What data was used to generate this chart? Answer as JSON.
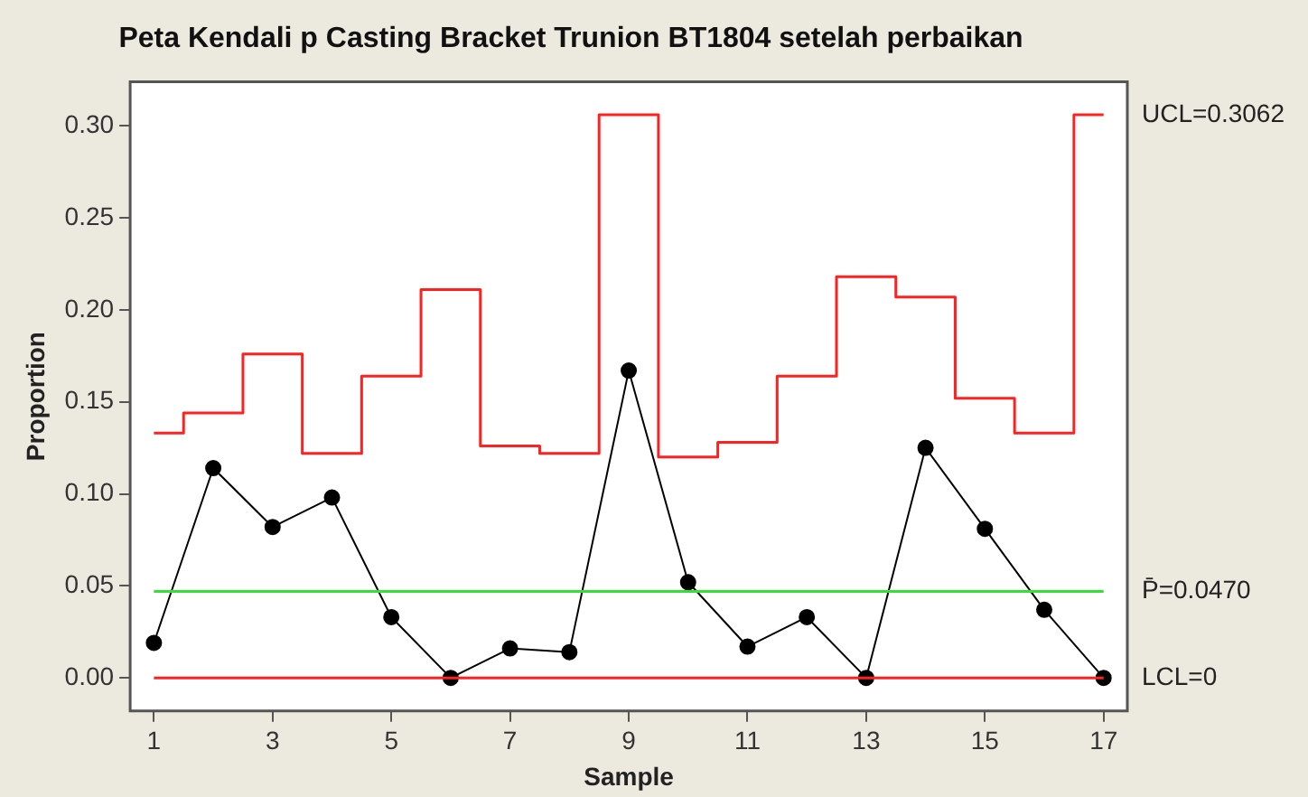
{
  "chart_data": {
    "type": "line",
    "title": "Peta Kendali p Casting Bracket Trunion BT1804 setelah perbaikan",
    "xlabel": "Sample",
    "ylabel": "Proportion",
    "x": [
      1,
      2,
      3,
      4,
      5,
      6,
      7,
      8,
      9,
      10,
      11,
      12,
      13,
      14,
      15,
      16,
      17
    ],
    "series": [
      {
        "type": "line",
        "color": "#000000",
        "marker": "circle",
        "values": [
          0.019,
          0.114,
          0.082,
          0.098,
          0.033,
          0,
          0.016,
          0.014,
          0.167,
          0.052,
          0.017,
          0.033,
          0,
          0.125,
          0.081,
          0.037,
          0
        ]
      },
      {
        "type": "step",
        "name": "UCL=0.3062",
        "color": "#ff2020",
        "marker": "none",
        "values": [
          0.133,
          0.144,
          0.176,
          0.122,
          0.164,
          0.211,
          0.126,
          0.122,
          0.306,
          0.12,
          0.128,
          0.164,
          0.218,
          0.207,
          0.152,
          0.133,
          0.306
        ]
      }
    ],
    "ref_lines": [
      {
        "axis": "y",
        "value": 0.047,
        "label": "P̄=0.0470",
        "color": "#33e033"
      },
      {
        "axis": "y",
        "value": 0,
        "label": "LCL=0",
        "color": "#ff2020"
      }
    ],
    "xlim": [
      0.6,
      17.4
    ],
    "xticks": [
      1,
      3,
      5,
      7,
      9,
      11,
      13,
      15,
      17
    ],
    "ylim": [
      -0.018,
      0.324
    ],
    "yticks": [
      {
        "value": 0,
        "label": "0.00"
      },
      {
        "value": 0.05,
        "label": "0.05"
      },
      {
        "value": 0.1,
        "label": "0.10"
      },
      {
        "value": 0.15,
        "label": "0.15"
      },
      {
        "value": 0.2,
        "label": "0.20"
      },
      {
        "value": 0.25,
        "label": "0.25"
      },
      {
        "value": 0.3,
        "label": "0.30"
      }
    ],
    "grid": false,
    "legend": false
  }
}
